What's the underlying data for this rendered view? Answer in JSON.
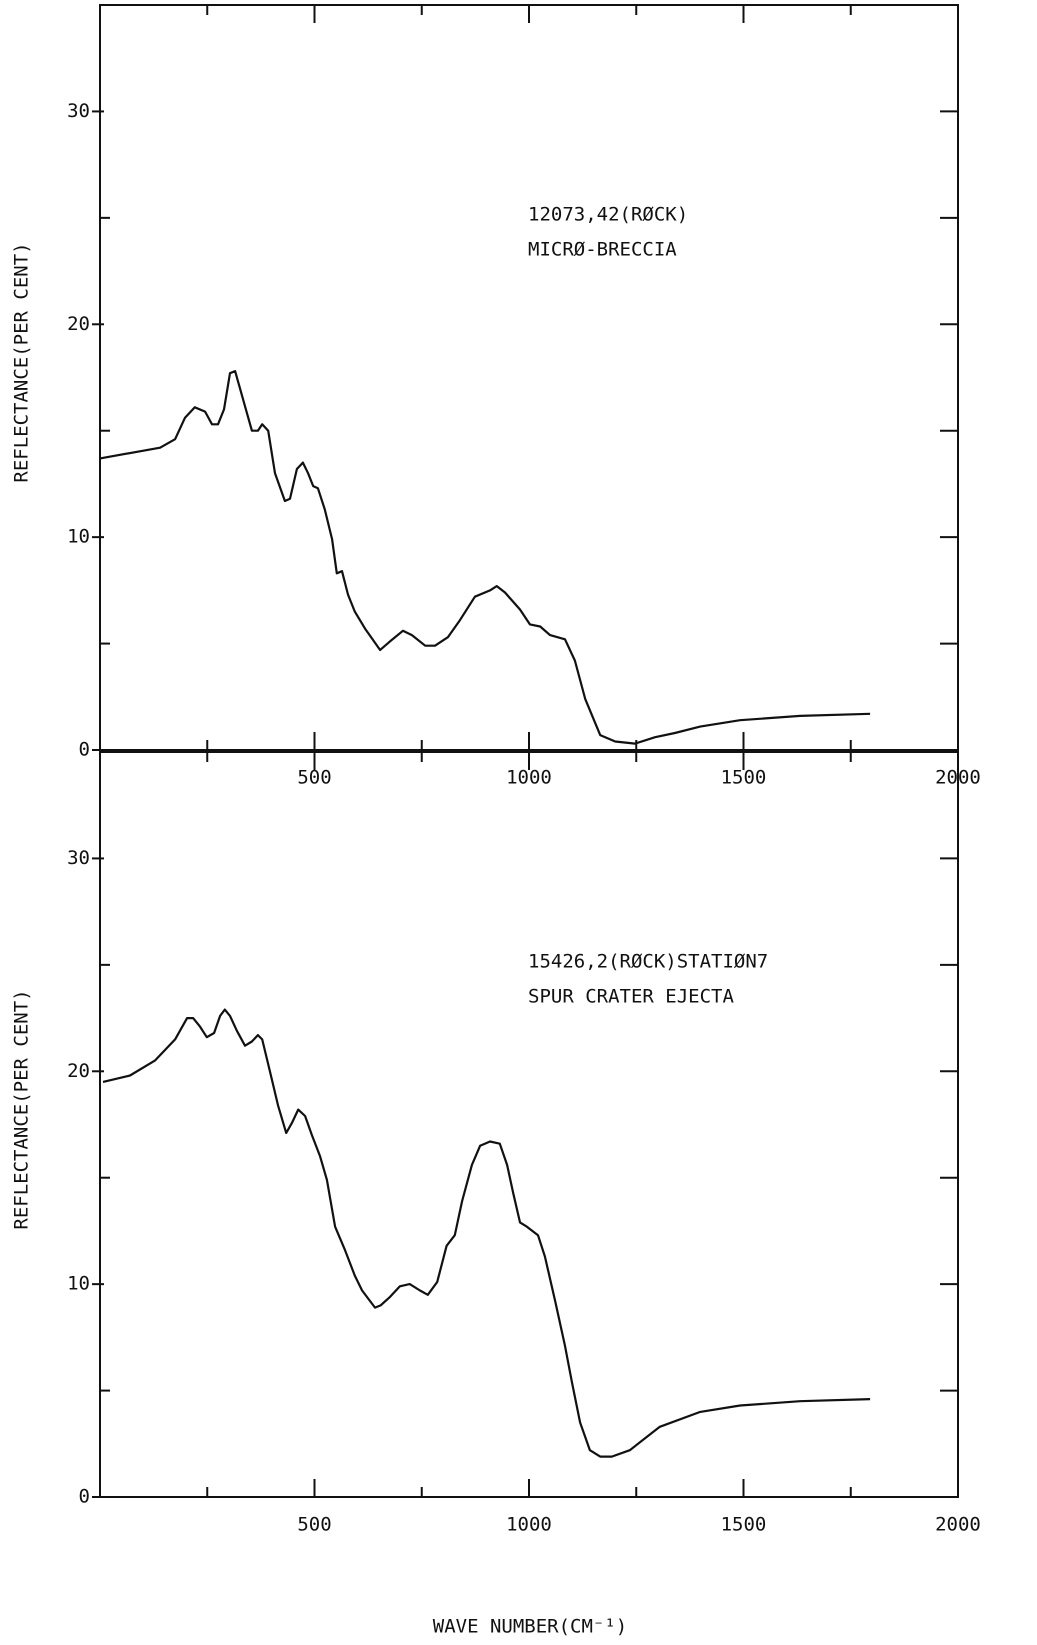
{
  "chart_data": [
    {
      "type": "line",
      "ylabel": "REFLECTANCE(PER CENT)",
      "annotations": [
        "12073,42(RØCK)",
        "MICRØ-BRECCIA"
      ],
      "color": "#111111",
      "xlim": [
        0,
        2000
      ],
      "xticks": [
        500,
        1000,
        1500,
        2000
      ],
      "xticks_minor": [
        250,
        750,
        1250,
        1750
      ],
      "ylim": [
        0,
        35
      ],
      "yticks": [
        0,
        10,
        20,
        30
      ],
      "yticks_minor": [
        5,
        15,
        25
      ],
      "x": [
        0,
        140,
        175,
        198,
        221,
        245,
        261,
        275,
        289,
        303,
        315,
        326,
        340,
        354,
        368,
        378,
        392,
        408,
        431,
        443,
        459,
        473,
        485,
        497,
        508,
        524,
        541,
        552,
        564,
        578,
        594,
        618,
        653,
        676,
        706,
        727,
        758,
        781,
        811,
        839,
        874,
        909,
        925,
        944,
        979,
        1002,
        1026,
        1049,
        1084,
        1107,
        1131,
        1166,
        1201,
        1247,
        1294,
        1340,
        1399,
        1492,
        1632,
        1795
      ],
      "values": [
        13.7,
        14.2,
        14.6,
        15.6,
        16.1,
        15.9,
        15.3,
        15.3,
        16.0,
        17.7,
        17.8,
        17.0,
        16.0,
        15.0,
        15.0,
        15.3,
        15.0,
        13.0,
        11.7,
        11.8,
        13.2,
        13.5,
        13.0,
        12.4,
        12.3,
        11.3,
        9.9,
        8.3,
        8.4,
        7.3,
        6.5,
        5.7,
        4.7,
        5.1,
        5.6,
        5.4,
        4.9,
        4.9,
        5.3,
        6.1,
        7.2,
        7.5,
        7.7,
        7.4,
        6.6,
        5.9,
        5.8,
        5.4,
        5.2,
        4.2,
        2.4,
        0.7,
        0.4,
        0.3,
        0.6,
        0.8,
        1.1,
        1.4,
        1.6,
        1.7
      ]
    },
    {
      "type": "line",
      "ylabel": "REFLECTANCE(PER CENT)",
      "xlabel": "WAVE NUMBER(CM⁻¹)",
      "annotations": [
        "15426,2(RØCK)STATIØN7",
        "SPUR CRATER EJECTA"
      ],
      "color": "#111111",
      "xlim": [
        0,
        2000
      ],
      "xticks": [
        500,
        1000,
        1500,
        2000
      ],
      "xticks_minor": [
        250,
        750,
        1250,
        1750
      ],
      "ylim": [
        0,
        35
      ],
      "yticks": [
        0,
        10,
        20,
        30
      ],
      "yticks_minor": [
        5,
        15,
        25
      ],
      "x": [
        7,
        70,
        128,
        175,
        203,
        217,
        233,
        249,
        266,
        280,
        291,
        303,
        319,
        338,
        354,
        368,
        378,
        396,
        415,
        434,
        448,
        462,
        478,
        494,
        513,
        529,
        548,
        571,
        594,
        611,
        641,
        654,
        676,
        699,
        722,
        746,
        764,
        786,
        808,
        827,
        844,
        867,
        886,
        909,
        932,
        949,
        963,
        979,
        995,
        1021,
        1037,
        1061,
        1084,
        1100,
        1119,
        1142,
        1166,
        1193,
        1235,
        1305,
        1399,
        1492,
        1632,
        1795
      ],
      "values": [
        19.5,
        19.8,
        20.5,
        21.5,
        22.5,
        22.5,
        22.1,
        21.6,
        21.8,
        22.6,
        22.9,
        22.6,
        21.9,
        21.2,
        21.4,
        21.7,
        21.5,
        20.0,
        18.4,
        17.1,
        17.6,
        18.2,
        17.9,
        17.0,
        16.0,
        14.9,
        12.7,
        11.6,
        10.4,
        9.7,
        8.9,
        9.0,
        9.4,
        9.9,
        10.0,
        9.7,
        9.5,
        10.1,
        11.8,
        12.3,
        13.9,
        15.6,
        16.5,
        16.7,
        16.6,
        15.6,
        14.3,
        12.9,
        12.7,
        12.3,
        11.3,
        9.2,
        7.1,
        5.4,
        3.5,
        2.2,
        1.9,
        1.9,
        2.2,
        3.3,
        4.0,
        4.3,
        4.5,
        4.6
      ]
    }
  ]
}
